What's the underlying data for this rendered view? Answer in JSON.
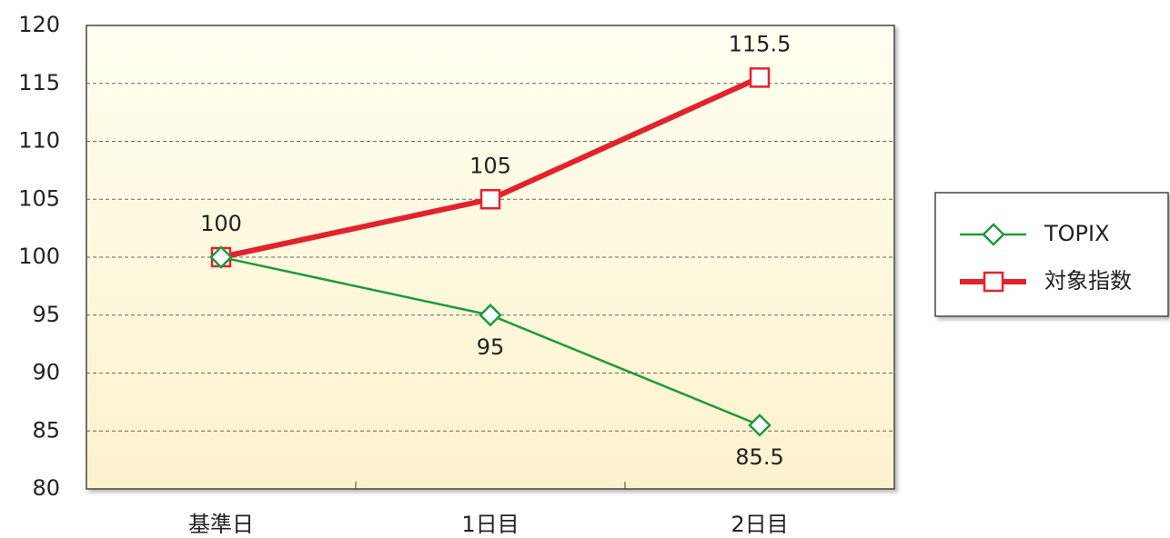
{
  "chart_data": {
    "type": "line",
    "categories": [
      "基準日",
      "1日目",
      "2日目"
    ],
    "series": [
      {
        "name": "TOPIX",
        "color": "#1e9a3c",
        "marker": "diamond",
        "values": [
          100,
          95,
          85.5
        ]
      },
      {
        "name": "対象指数",
        "color": "#e3222b",
        "marker": "square",
        "values": [
          100,
          105,
          115.5
        ]
      }
    ],
    "ylim": [
      80,
      120
    ],
    "yticks": [
      80,
      85,
      90,
      95,
      100,
      105,
      110,
      115,
      120
    ],
    "grid": true,
    "legend": "right"
  }
}
